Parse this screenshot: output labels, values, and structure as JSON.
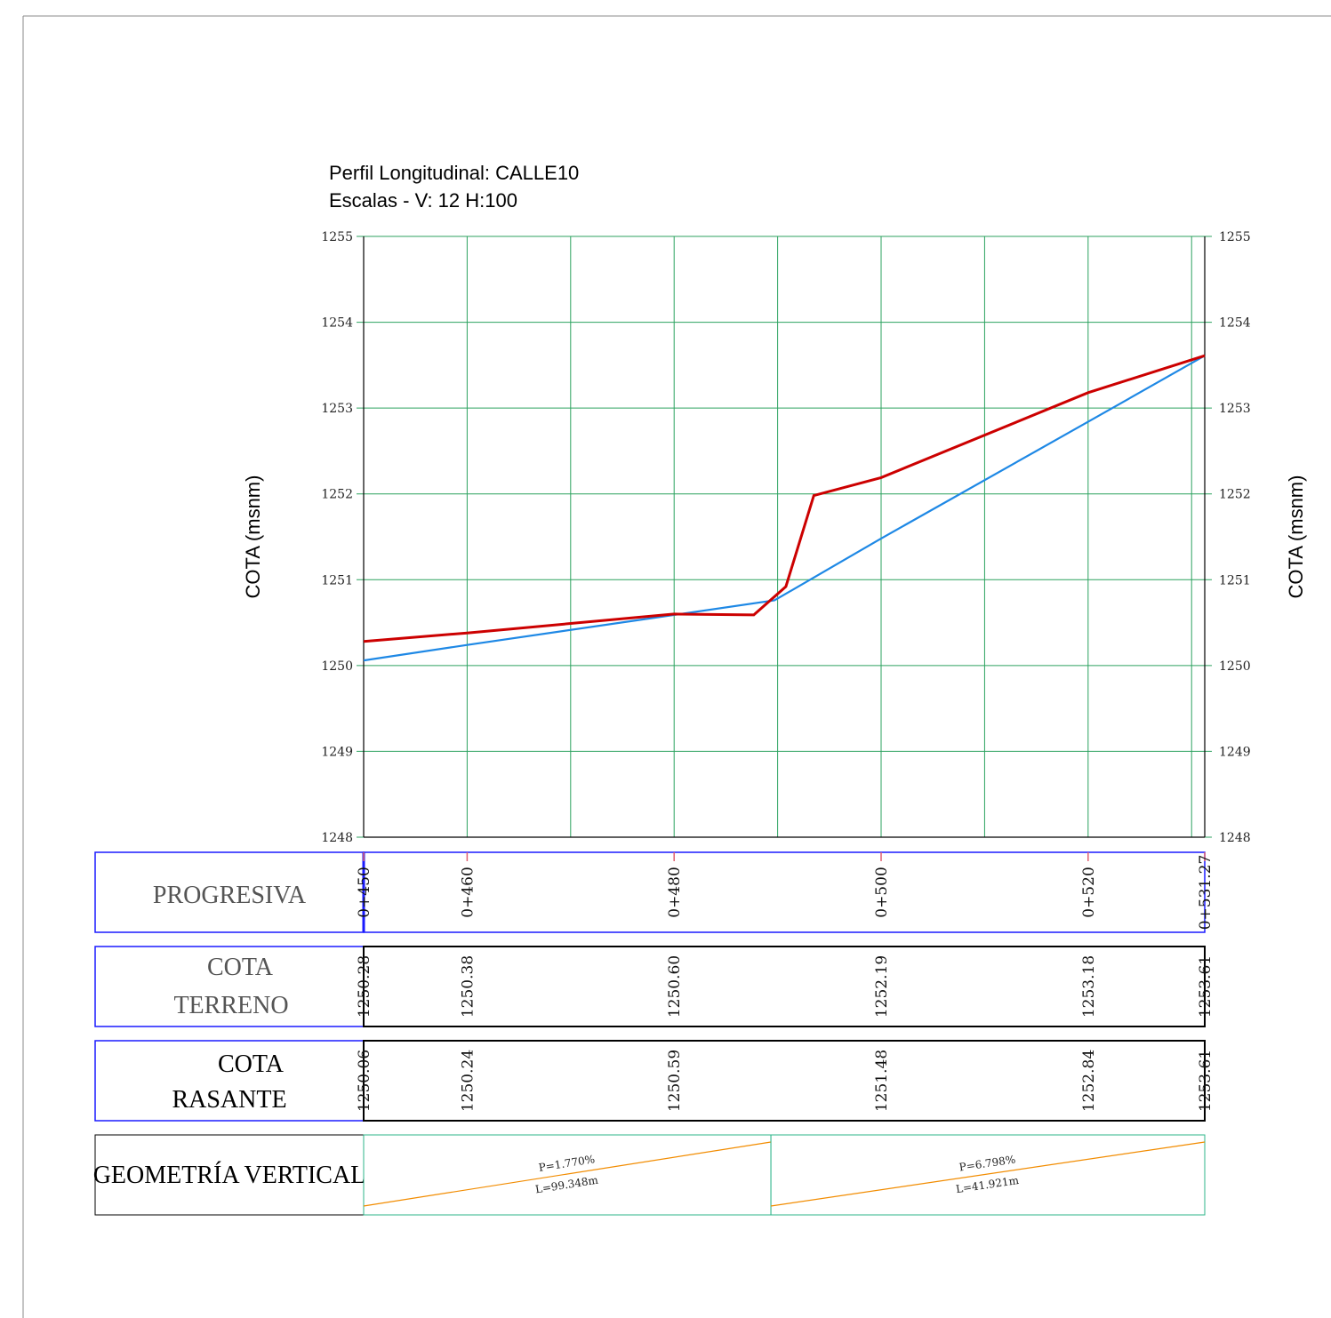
{
  "title": {
    "line1": "Perfil Longitudinal: CALLE10",
    "line2": "Escalas - V: 12 H:100"
  },
  "axes": {
    "ylabel_left": "COTA (msnm)",
    "ylabel_right": "COTA (msnm)"
  },
  "colors": {
    "grid": "#2ca25f",
    "terreno": "#cc0000",
    "rasante": "#1e88e5",
    "blue_frame": "#1a1aff",
    "geometry_line": "#f28c00",
    "geometry_frame": "#2cb58a",
    "station_tick": "#e06070"
  },
  "chart_data": {
    "type": "line",
    "title": "Perfil Longitudinal: CALLE10",
    "subtitle": "Escalas - V: 12 H:100",
    "ylabel": "COTA (msnm)",
    "xlabel": "",
    "xlim": [
      450,
      531.27
    ],
    "ylim": [
      1248,
      1255
    ],
    "y_ticks": [
      1248,
      1249,
      1250,
      1251,
      1252,
      1253,
      1254,
      1255
    ],
    "x_gridlines": [
      450,
      460,
      470,
      480,
      490,
      500,
      510,
      520,
      530,
      531.27
    ],
    "grid": true,
    "series": [
      {
        "key": "terreno",
        "points": [
          [
            450,
            1250.28
          ],
          [
            460,
            1250.38
          ],
          [
            480,
            1250.6
          ],
          [
            487.7,
            1250.59
          ],
          [
            490.8,
            1250.92
          ],
          [
            493.5,
            1251.98
          ],
          [
            500,
            1252.19
          ],
          [
            520,
            1253.18
          ],
          [
            531.27,
            1253.61
          ]
        ]
      },
      {
        "key": "rasante",
        "points": [
          [
            450,
            1250.06
          ],
          [
            460,
            1250.24
          ],
          [
            480,
            1250.59
          ],
          [
            489.7,
            1250.76
          ],
          [
            500,
            1251.48
          ],
          [
            520,
            1252.84
          ],
          [
            531.27,
            1253.61
          ]
        ]
      }
    ]
  },
  "table": {
    "progresiva": {
      "label": "PROGRESIVA",
      "items": [
        {
          "station": 450,
          "text": "0+450"
        },
        {
          "station": 460,
          "text": "0+460"
        },
        {
          "station": 480,
          "text": "0+480"
        },
        {
          "station": 500,
          "text": "0+500"
        },
        {
          "station": 520,
          "text": "0+520"
        },
        {
          "station": 531.27,
          "text": "0+531.27"
        }
      ]
    },
    "terreno": {
      "label_line1": "COTA",
      "label_line2": "TERRENO",
      "items": [
        {
          "station": 450,
          "text": "1250.28"
        },
        {
          "station": 460,
          "text": "1250.38"
        },
        {
          "station": 480,
          "text": "1250.60"
        },
        {
          "station": 500,
          "text": "1252.19"
        },
        {
          "station": 520,
          "text": "1253.18"
        },
        {
          "station": 531.27,
          "text": "1253.61"
        }
      ]
    },
    "rasante": {
      "label_line1": "COTA",
      "label_line2": "RASANTE",
      "items": [
        {
          "station": 450,
          "text": "1250.06"
        },
        {
          "station": 460,
          "text": "1250.24"
        },
        {
          "station": 480,
          "text": "1250.59"
        },
        {
          "station": 500,
          "text": "1251.48"
        },
        {
          "station": 520,
          "text": "1252.84"
        },
        {
          "station": 531.27,
          "text": "1253.61"
        }
      ]
    },
    "geometria": {
      "label": "GEOMETRÍA VERTICAL",
      "segments": [
        {
          "from": 450,
          "to": 489.35,
          "slope": "P=1.770%",
          "length": "L=99.348m",
          "rise": [
            0,
            1
          ]
        },
        {
          "from": 489.35,
          "to": 531.27,
          "slope": "P=6.798%",
          "length": "L=41.921m",
          "rise": [
            0,
            1
          ]
        }
      ]
    }
  }
}
